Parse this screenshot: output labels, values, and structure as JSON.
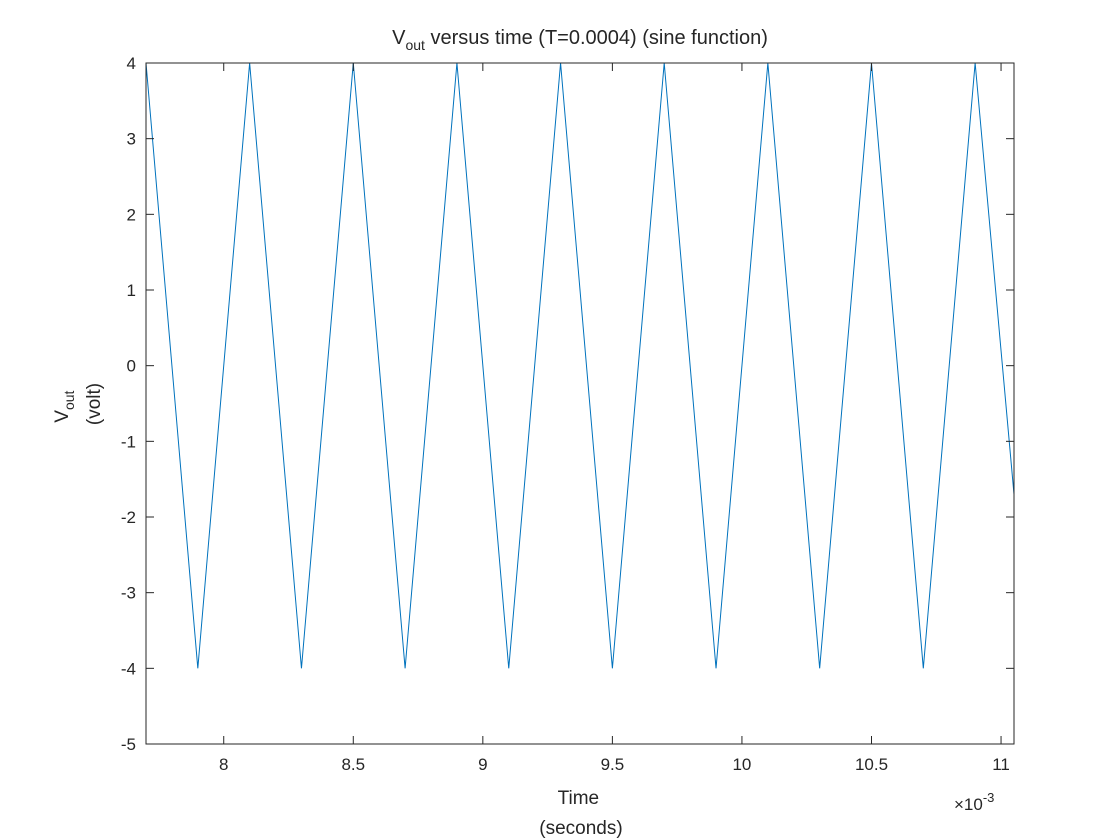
{
  "chart_data": {
    "type": "line",
    "title": {
      "prefix": "V",
      "subscript": "out",
      "suffix": " versus time (T=0.0004) (sine function)"
    },
    "xlabel": {
      "line1": "Time",
      "line2": "(seconds)"
    },
    "ylabel": {
      "prefix": "V",
      "subscript": "out",
      "line2": "(volt)"
    },
    "x_exponent": {
      "base": "×10",
      "power": "-3"
    },
    "x_scale_factor": 0.001,
    "xlim": [
      7.7,
      11.05
    ],
    "ylim": [
      -5,
      4
    ],
    "xticks": [
      8,
      8.5,
      9,
      9.5,
      10,
      10.5,
      11
    ],
    "xtick_labels": [
      "8",
      "8.5",
      "9",
      "9.5",
      "10",
      "10.5",
      "11"
    ],
    "yticks": [
      4,
      3,
      2,
      1,
      0,
      -1,
      -2,
      -3,
      -4,
      -5
    ],
    "ytick_labels": [
      "4",
      "3",
      "2",
      "1",
      "0",
      "-1",
      "-2",
      "-3",
      "-4",
      "-5"
    ],
    "grid": false,
    "series": [
      {
        "color": "#0072BD",
        "x": [
          7.7,
          7.9,
          8.1,
          8.3,
          8.5,
          8.7,
          8.9,
          9.1,
          9.3,
          9.5,
          9.7,
          9.9,
          10.1,
          10.3,
          10.5,
          10.7,
          10.9,
          11.05
        ],
        "y": [
          4,
          -4,
          4,
          -4,
          4,
          -4,
          4,
          -4,
          4,
          -4,
          4,
          -4,
          4,
          -4,
          4,
          -4,
          4,
          -1.7
        ]
      }
    ]
  }
}
